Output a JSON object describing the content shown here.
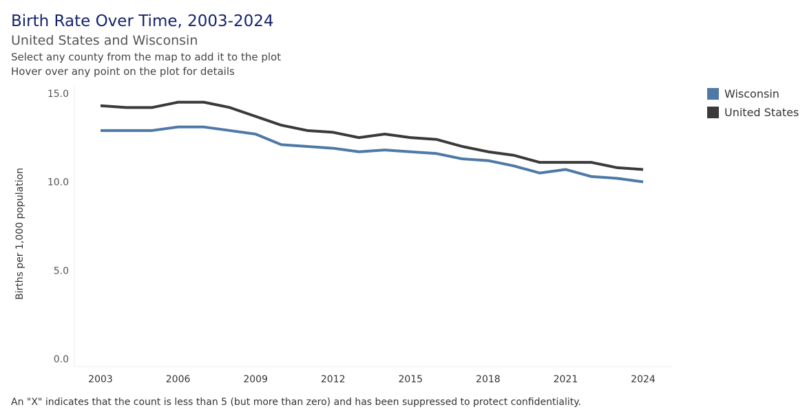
{
  "header": {
    "title": "Birth Rate Over Time, 2003-2024",
    "subtitle": "United States and Wisconsin",
    "instruction1": "Select any county from the map to add it to the plot",
    "instruction2": "Hover over any point on the plot for details"
  },
  "footnote": "An \"X\" indicates that the count is less than 5 (but more than zero) and has been suppressed to protect confidentiality.",
  "chart_data": {
    "type": "line",
    "title": "Birth Rate Over Time, 2003-2024",
    "xlabel": "",
    "ylabel": "Births per 1,000 population",
    "ylim": [
      0,
      15
    ],
    "yticks": [
      "0.0",
      "5.0",
      "10.0",
      "15.0"
    ],
    "ytick_values": [
      0,
      5,
      10,
      15
    ],
    "xticks": [
      "2003",
      "2006",
      "2009",
      "2012",
      "2015",
      "2018",
      "2021",
      "2024"
    ],
    "x": [
      2003,
      2004,
      2005,
      2006,
      2007,
      2008,
      2009,
      2010,
      2011,
      2012,
      2013,
      2014,
      2015,
      2016,
      2017,
      2018,
      2019,
      2020,
      2021,
      2022,
      2023,
      2024
    ],
    "legend_position": "right",
    "series": [
      {
        "name": "Wisconsin",
        "color": "#4e79a7",
        "values": [
          12.9,
          12.9,
          12.9,
          13.1,
          13.1,
          12.9,
          12.7,
          12.1,
          12.0,
          11.9,
          11.7,
          11.8,
          11.7,
          11.6,
          11.3,
          11.2,
          10.9,
          10.5,
          10.7,
          10.3,
          10.2,
          10.0
        ]
      },
      {
        "name": "United States",
        "color": "#3a3a3a",
        "values": [
          14.3,
          14.2,
          14.2,
          14.5,
          14.5,
          14.2,
          13.7,
          13.2,
          12.9,
          12.8,
          12.5,
          12.7,
          12.5,
          12.4,
          12.0,
          11.7,
          11.5,
          11.1,
          11.1,
          11.1,
          10.8,
          10.7
        ]
      }
    ]
  }
}
